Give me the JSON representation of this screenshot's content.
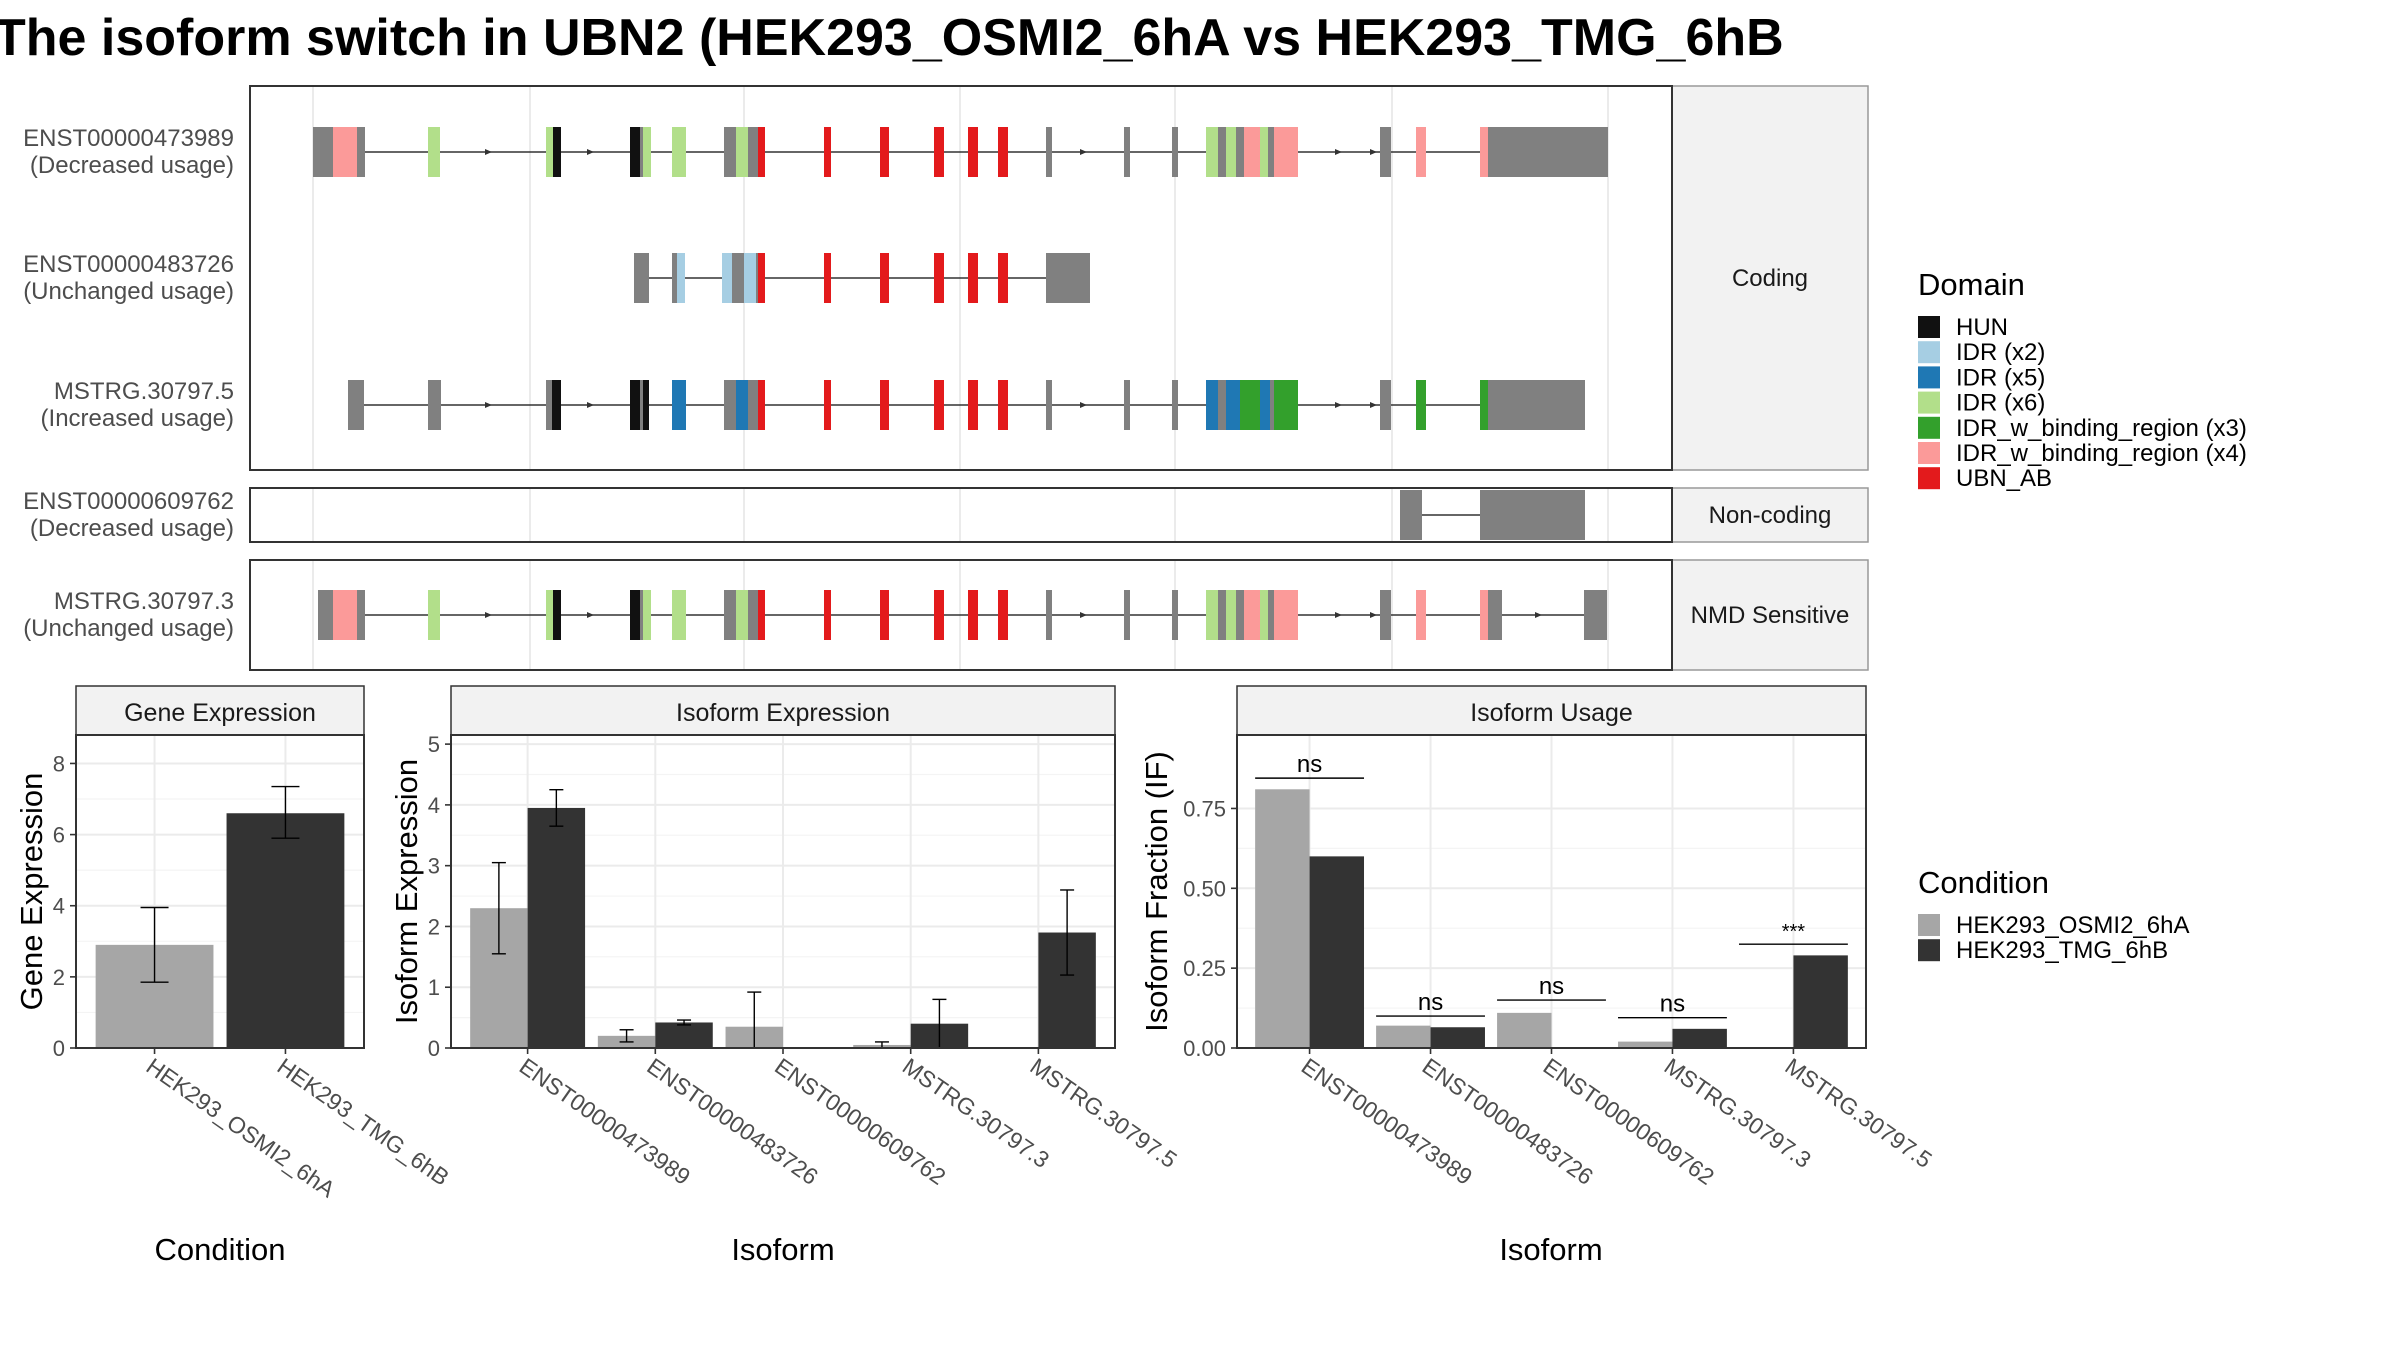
{
  "title": "The isoform switch in UBN2 (HEK293_OSMI2_6hA vs HEK293_TMG_6hB",
  "colors": {
    "exon": "#808080",
    "intron": "#333333",
    "panel_border": "#333333",
    "strip_bg": "#f2f2f2",
    "grid_major": "#ebebeb",
    "grid_minor": "#f4f4f4",
    "cond_a": "#a6a6a6",
    "cond_b": "#333333",
    "domains": {
      "HUN": "#111111",
      "IDR (x2)": "#a6cee3",
      "IDR (x5)": "#1f78b4",
      "IDR (x6)": "#b2df8a",
      "IDR_w_binding_region (x3)": "#33a02c",
      "IDR_w_binding_region (x4)": "#fb9a99",
      "UBN_AB": "#e31a1c"
    }
  },
  "structure": {
    "groups": [
      {
        "label": "Coding",
        "transcripts": [
          {
            "id": "ENST00000473989",
            "usage": "(Decreased usage)",
            "pattern": "A"
          },
          {
            "id": "ENST00000483726",
            "usage": "(Unchanged usage)",
            "pattern": "B"
          },
          {
            "id": "MSTRG.30797.5",
            "usage": "(Increased usage)",
            "pattern": "C"
          }
        ]
      },
      {
        "label": "Non-coding",
        "transcripts": [
          {
            "id": "ENST00000609762",
            "usage": "(Decreased usage)",
            "pattern": "D"
          }
        ]
      },
      {
        "label": "NMD Sensitive",
        "transcripts": [
          {
            "id": "MSTRG.30797.3",
            "usage": "(Unchanged usage)",
            "pattern": "E"
          }
        ]
      }
    ]
  },
  "legend_domain": {
    "title": "Domain",
    "items": [
      "HUN",
      "IDR (x2)",
      "IDR (x5)",
      "IDR (x6)",
      "IDR_w_binding_region (x3)",
      "IDR_w_binding_region (x4)",
      "UBN_AB"
    ]
  },
  "legend_condition": {
    "title": "Condition",
    "items": [
      "HEK293_OSMI2_6hA",
      "HEK293_TMG_6hB"
    ]
  },
  "chart_data": [
    {
      "type": "bar",
      "title": "Gene Expression",
      "xlabel": "Condition",
      "ylabel": "Gene Expression",
      "categories": [
        "HEK293_OSMI2_6hA",
        "HEK293_TMG_6hB"
      ],
      "values": [
        2.9,
        6.6
      ],
      "errors": [
        [
          1.85,
          3.95
        ],
        [
          5.9,
          7.35
        ]
      ],
      "ylim": [
        0,
        8.8
      ],
      "yticks": [
        0,
        2,
        4,
        6,
        8
      ],
      "grid": true
    },
    {
      "type": "bar",
      "title": "Isoform Expression",
      "xlabel": "Isoform",
      "ylabel": "Isoform Expression",
      "categories": [
        "ENST00000473989",
        "ENST00000483726",
        "ENST00000609762",
        "MSTRG.30797.3",
        "MSTRG.30797.5"
      ],
      "series": [
        {
          "name": "HEK293_OSMI2_6hA",
          "values": [
            2.3,
            0.2,
            0.35,
            0.05,
            0.0
          ],
          "errors": [
            [
              1.55,
              3.05
            ],
            [
              0.1,
              0.3
            ],
            [
              0.0,
              0.92
            ],
            [
              0.0,
              0.1
            ],
            [
              0.0,
              0.0
            ]
          ]
        },
        {
          "name": "HEK293_TMG_6hB",
          "values": [
            3.95,
            0.42,
            0.0,
            0.4,
            1.9
          ],
          "errors": [
            [
              3.65,
              4.25
            ],
            [
              0.38,
              0.46
            ],
            [
              0.0,
              0.0
            ],
            [
              0.0,
              0.8
            ],
            [
              1.2,
              2.6
            ]
          ]
        }
      ],
      "ylim": [
        0,
        5.15
      ],
      "yticks": [
        0,
        1,
        2,
        3,
        4,
        5
      ],
      "grid": true
    },
    {
      "type": "bar",
      "title": "Isoform Usage",
      "xlabel": "Isoform",
      "ylabel": "Isoform Fraction (IF)",
      "categories": [
        "ENST00000473989",
        "ENST00000483726",
        "ENST00000609762",
        "MSTRG.30797.3",
        "MSTRG.30797.5"
      ],
      "series": [
        {
          "name": "HEK293_OSMI2_6hA",
          "values": [
            0.81,
            0.07,
            0.11,
            0.02,
            0.0
          ]
        },
        {
          "name": "HEK293_TMG_6hB",
          "values": [
            0.6,
            0.065,
            0.0,
            0.06,
            0.29
          ]
        }
      ],
      "significance": [
        "ns",
        "ns",
        "ns",
        "ns",
        "***"
      ],
      "sig_levels": [
        0.845,
        0.1,
        0.15,
        0.095,
        0.325
      ],
      "ylim": [
        0,
        0.98
      ],
      "yticks": [
        0.0,
        0.25,
        0.5,
        0.75
      ],
      "ytick_labels": [
        "0.00",
        "0.25",
        "0.50",
        "0.75"
      ],
      "grid": true
    }
  ]
}
